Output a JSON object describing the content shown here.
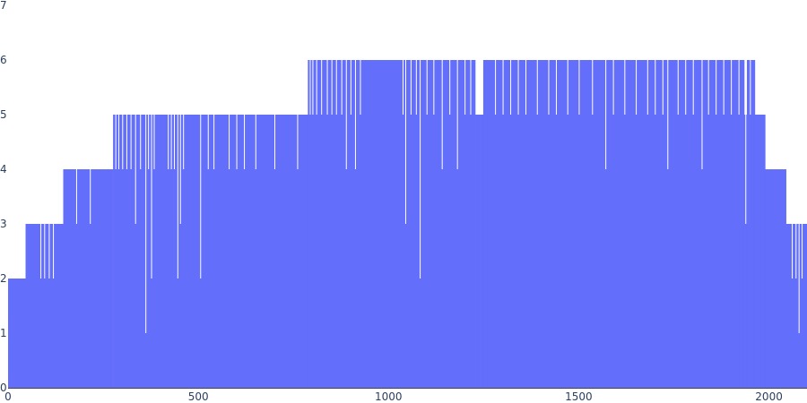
{
  "chart_data": {
    "type": "bar",
    "color": "#636efa",
    "background": "#ffffff",
    "grid": false,
    "legend": false,
    "xlim": [
      0,
      2100
    ],
    "ylim": [
      0,
      7
    ],
    "x_ticks": [
      0,
      500,
      1000,
      1500,
      2000
    ],
    "y_ticks": [
      0,
      1,
      2,
      3,
      4,
      5,
      6,
      7
    ],
    "segments": [
      {
        "x0": 0,
        "x1": 46,
        "value": 2
      },
      {
        "x0": 46,
        "x1": 145,
        "value": 3
      },
      {
        "x0": 145,
        "x1": 276,
        "value": 4
      },
      {
        "x0": 276,
        "x1": 788,
        "value": 5
      },
      {
        "x0": 788,
        "x1": 1228,
        "value": 6
      },
      {
        "x0": 1228,
        "x1": 1249,
        "value": 5
      },
      {
        "x0": 1249,
        "x1": 1935,
        "value": 6
      },
      {
        "x0": 1935,
        "x1": 1942,
        "value": 5
      },
      {
        "x0": 1942,
        "x1": 1963,
        "value": 6
      },
      {
        "x0": 1963,
        "x1": 1990,
        "value": 5
      },
      {
        "x0": 1990,
        "x1": 2045,
        "value": 4
      },
      {
        "x0": 2045,
        "x1": 2100,
        "value": 3
      }
    ],
    "dips": [
      {
        "x": 85,
        "value": 2
      },
      {
        "x": 95,
        "value": 2
      },
      {
        "x": 107,
        "value": 2
      },
      {
        "x": 118,
        "value": 2
      },
      {
        "x": 179,
        "value": 3
      },
      {
        "x": 215,
        "value": 3
      },
      {
        "x": 282,
        "value": 4
      },
      {
        "x": 290,
        "value": 4
      },
      {
        "x": 300,
        "value": 4
      },
      {
        "x": 311,
        "value": 4
      },
      {
        "x": 322,
        "value": 4
      },
      {
        "x": 334,
        "value": 3
      },
      {
        "x": 347,
        "value": 4
      },
      {
        "x": 361,
        "value": 1
      },
      {
        "x": 368,
        "value": 4
      },
      {
        "x": 376,
        "value": 2
      },
      {
        "x": 383,
        "value": 4
      },
      {
        "x": 420,
        "value": 4
      },
      {
        "x": 428,
        "value": 4
      },
      {
        "x": 436,
        "value": 4
      },
      {
        "x": 445,
        "value": 2
      },
      {
        "x": 452,
        "value": 3
      },
      {
        "x": 460,
        "value": 4
      },
      {
        "x": 505,
        "value": 2
      },
      {
        "x": 525,
        "value": 4
      },
      {
        "x": 540,
        "value": 4
      },
      {
        "x": 580,
        "value": 4
      },
      {
        "x": 600,
        "value": 4
      },
      {
        "x": 620,
        "value": 4
      },
      {
        "x": 650,
        "value": 4
      },
      {
        "x": 700,
        "value": 4
      },
      {
        "x": 760,
        "value": 4
      },
      {
        "x": 793,
        "value": 5
      },
      {
        "x": 800,
        "value": 5
      },
      {
        "x": 810,
        "value": 5
      },
      {
        "x": 823,
        "value": 5
      },
      {
        "x": 838,
        "value": 5
      },
      {
        "x": 850,
        "value": 5
      },
      {
        "x": 862,
        "value": 5
      },
      {
        "x": 876,
        "value": 5
      },
      {
        "x": 888,
        "value": 4
      },
      {
        "x": 900,
        "value": 5
      },
      {
        "x": 912,
        "value": 4
      },
      {
        "x": 925,
        "value": 5
      },
      {
        "x": 1037,
        "value": 5
      },
      {
        "x": 1044,
        "value": 3
      },
      {
        "x": 1058,
        "value": 5
      },
      {
        "x": 1072,
        "value": 5
      },
      {
        "x": 1082,
        "value": 2
      },
      {
        "x": 1100,
        "value": 5
      },
      {
        "x": 1118,
        "value": 5
      },
      {
        "x": 1140,
        "value": 4
      },
      {
        "x": 1160,
        "value": 5
      },
      {
        "x": 1180,
        "value": 4
      },
      {
        "x": 1200,
        "value": 5
      },
      {
        "x": 1215,
        "value": 5
      },
      {
        "x": 1280,
        "value": 5
      },
      {
        "x": 1300,
        "value": 5
      },
      {
        "x": 1320,
        "value": 5
      },
      {
        "x": 1340,
        "value": 5
      },
      {
        "x": 1360,
        "value": 5
      },
      {
        "x": 1390,
        "value": 5
      },
      {
        "x": 1420,
        "value": 5
      },
      {
        "x": 1440,
        "value": 5
      },
      {
        "x": 1470,
        "value": 5
      },
      {
        "x": 1500,
        "value": 5
      },
      {
        "x": 1535,
        "value": 5
      },
      {
        "x": 1570,
        "value": 4
      },
      {
        "x": 1590,
        "value": 5
      },
      {
        "x": 1620,
        "value": 5
      },
      {
        "x": 1650,
        "value": 5
      },
      {
        "x": 1680,
        "value": 5
      },
      {
        "x": 1700,
        "value": 5
      },
      {
        "x": 1720,
        "value": 5
      },
      {
        "x": 1733,
        "value": 4
      },
      {
        "x": 1760,
        "value": 5
      },
      {
        "x": 1780,
        "value": 5
      },
      {
        "x": 1800,
        "value": 5
      },
      {
        "x": 1823,
        "value": 4
      },
      {
        "x": 1840,
        "value": 5
      },
      {
        "x": 1860,
        "value": 5
      },
      {
        "x": 1880,
        "value": 5
      },
      {
        "x": 1900,
        "value": 5
      },
      {
        "x": 1920,
        "value": 5
      },
      {
        "x": 1938,
        "value": 3
      },
      {
        "x": 1950,
        "value": 5
      },
      {
        "x": 2060,
        "value": 2
      },
      {
        "x": 2070,
        "value": 2
      },
      {
        "x": 2078,
        "value": 1
      },
      {
        "x": 2086,
        "value": 2
      }
    ]
  }
}
